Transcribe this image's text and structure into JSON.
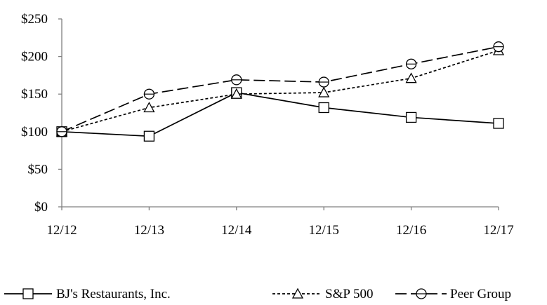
{
  "chart_data": {
    "type": "line",
    "title": "",
    "xlabel": "",
    "ylabel": "",
    "categories": [
      "12/12",
      "12/13",
      "12/14",
      "12/15",
      "12/16",
      "12/17"
    ],
    "ylim": [
      0,
      250
    ],
    "yticks": [
      0,
      50,
      100,
      150,
      200,
      250
    ],
    "ytick_labels": [
      "$0",
      "$50",
      "$100",
      "$150",
      "$200",
      "$250"
    ],
    "grid": false,
    "legend_position": "bottom",
    "series": [
      {
        "name": "BJ's Restaurants, Inc.",
        "values": [
          100,
          94,
          152,
          132,
          119,
          111
        ],
        "marker": "square",
        "dash": "solid"
      },
      {
        "name": "S&P 500",
        "values": [
          100,
          132,
          150,
          152,
          171,
          208
        ],
        "marker": "triangle",
        "dash": "short-dash"
      },
      {
        "name": "Peer Group",
        "values": [
          100,
          150,
          169,
          166,
          190,
          213
        ],
        "marker": "circle",
        "dash": "long-dash"
      }
    ]
  }
}
